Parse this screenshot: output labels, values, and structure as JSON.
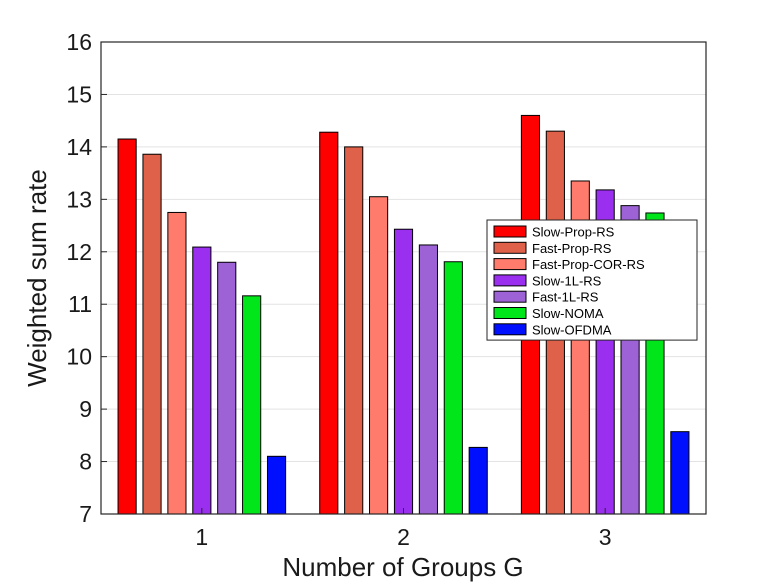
{
  "chart_data": {
    "type": "bar",
    "title": "",
    "xlabel": "Number of Groups G",
    "ylabel": "Weighted sum rate",
    "ylim": [
      7,
      16
    ],
    "yticks": [
      7,
      8,
      9,
      10,
      11,
      12,
      13,
      14,
      15,
      16
    ],
    "categories": [
      "1",
      "2",
      "3"
    ],
    "grid": "horizontal",
    "legend_position": "right",
    "series": [
      {
        "name": "Slow-Prop-RS",
        "color": "#ff0000",
        "values": [
          14.15,
          14.28,
          14.6
        ]
      },
      {
        "name": "Fast-Prop-RS",
        "color": "#e0614a",
        "values": [
          13.86,
          14.0,
          14.3
        ]
      },
      {
        "name": "Fast-Prop-COR-RS",
        "color": "#ff7b6b",
        "values": [
          12.75,
          13.05,
          13.35
        ]
      },
      {
        "name": "Slow-1L-RS",
        "color": "#9a2ff0",
        "values": [
          12.09,
          12.43,
          13.18
        ]
      },
      {
        "name": "Fast-1L-RS",
        "color": "#9d62d6",
        "values": [
          11.8,
          12.13,
          12.88
        ]
      },
      {
        "name": "Slow-NOMA",
        "color": "#00e61a",
        "values": [
          11.16,
          11.81,
          12.74
        ]
      },
      {
        "name": "Slow-OFDMA",
        "color": "#0010ff",
        "values": [
          8.1,
          8.27,
          8.57
        ]
      }
    ]
  }
}
